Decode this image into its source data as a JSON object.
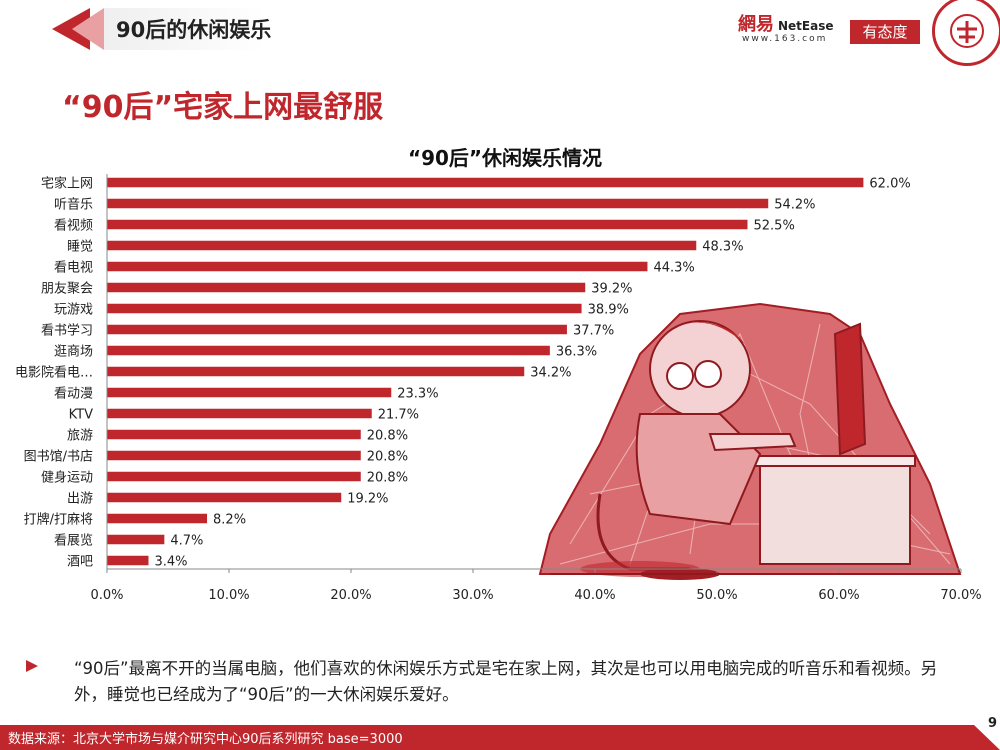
{
  "header": {
    "section_title": "90后的休闲娱乐"
  },
  "logos": {
    "netease_cn": "網易",
    "netease_en": "NetEase",
    "netease_url": "www.163.com",
    "youtaidu": "有态度"
  },
  "headline": "“90后”宅家上网最舒服",
  "chart_data": {
    "type": "bar",
    "orientation": "horizontal",
    "title": "“90后”休闲娱乐情况",
    "categories": [
      "宅家上网",
      "听音乐",
      "看视频",
      "睡觉",
      "看电视",
      "朋友聚会",
      "玩游戏",
      "看书学习",
      "逛商场",
      "电影院看电…",
      "看动漫",
      "KTV",
      "旅游",
      "图书馆/书店",
      "健身运动",
      "出游",
      "打牌/打麻将",
      "看展览",
      "酒吧"
    ],
    "values": [
      62.0,
      54.2,
      52.5,
      48.3,
      44.3,
      39.2,
      38.9,
      37.7,
      36.3,
      34.2,
      23.3,
      21.7,
      20.8,
      20.8,
      20.8,
      19.2,
      8.2,
      4.7,
      3.4
    ],
    "xlim": [
      0,
      70
    ],
    "xticks": [
      0,
      10,
      20,
      30,
      40,
      50,
      60,
      70
    ],
    "value_format": "percent_1dp",
    "bar_color": "#c0272d",
    "xlabel": "",
    "ylabel": ""
  },
  "description": "“90后”最离不开的当属电脑，他们喜欢的休闲娱乐方式是宅在家上网，其次是也可以用电脑完成的听音乐和看视频。另外，睡觉也已经成为了“90后”的一大休闲娱乐爱好。",
  "footer": {
    "source": "数据来源：北京大学市场与媒介研究中心90后系列研究 base=3000",
    "page": "9"
  },
  "colors": {
    "accent": "#c0272d"
  }
}
